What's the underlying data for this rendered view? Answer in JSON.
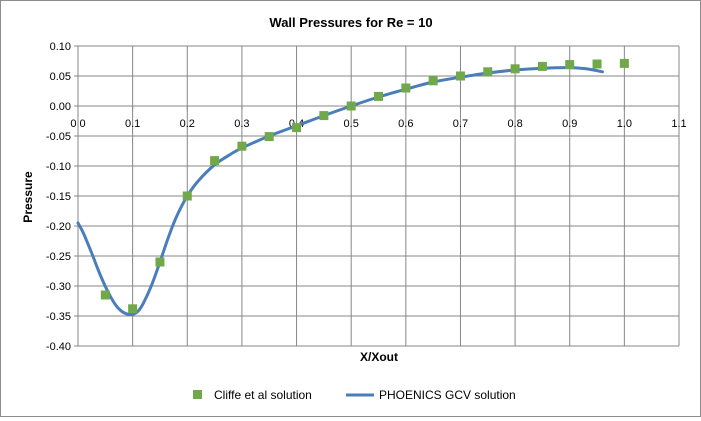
{
  "chart_data": {
    "type": "scatter+line",
    "title": "Wall Pressures for Re = 10",
    "xlabel": "X/Xout",
    "ylabel": "Pressure",
    "xlim": [
      0.0,
      1.1
    ],
    "ylim": [
      -0.4,
      0.1
    ],
    "x_ticks": [
      "0.0",
      "0.1",
      "0.2",
      "0.3",
      "0.4",
      "0.5",
      "0.6",
      "0.7",
      "0.8",
      "0.9",
      "1.0",
      "1.1"
    ],
    "y_ticks": [
      "0.10",
      "0.05",
      "0.00",
      "-0.05",
      "-0.10",
      "-0.15",
      "-0.20",
      "-0.25",
      "-0.30",
      "-0.35",
      "-0.40"
    ],
    "grid": true,
    "legend_position": "bottom",
    "series": [
      {
        "name": "Cliffe et al solution",
        "kind": "markers",
        "color": "#70a84a",
        "x": [
          0.05,
          0.1,
          0.15,
          0.2,
          0.25,
          0.3,
          0.35,
          0.4,
          0.45,
          0.5,
          0.55,
          0.6,
          0.65,
          0.7,
          0.75,
          0.8,
          0.85,
          0.9,
          0.95,
          1.0
        ],
        "y": [
          -0.315,
          -0.338,
          -0.26,
          -0.15,
          -0.091,
          -0.067,
          -0.051,
          -0.036,
          -0.016,
          0.0,
          0.016,
          0.03,
          0.042,
          0.05,
          0.057,
          0.062,
          0.066,
          0.069,
          0.07,
          0.071
        ]
      },
      {
        "name": "PHOENICS GCV solution",
        "kind": "line",
        "color": "#4a7ebb",
        "x": [
          0.0,
          0.01,
          0.025,
          0.04,
          0.055,
          0.07,
          0.085,
          0.1,
          0.11,
          0.12,
          0.135,
          0.15,
          0.165,
          0.18,
          0.2,
          0.22,
          0.25,
          0.28,
          0.3,
          0.35,
          0.4,
          0.45,
          0.5,
          0.55,
          0.6,
          0.65,
          0.7,
          0.75,
          0.8,
          0.85,
          0.9,
          0.93,
          0.96
        ],
        "y": [
          -0.195,
          -0.212,
          -0.245,
          -0.28,
          -0.31,
          -0.333,
          -0.345,
          -0.347,
          -0.342,
          -0.328,
          -0.298,
          -0.26,
          -0.22,
          -0.185,
          -0.15,
          -0.125,
          -0.098,
          -0.08,
          -0.07,
          -0.05,
          -0.033,
          -0.016,
          0.0,
          0.015,
          0.028,
          0.04,
          0.048,
          0.055,
          0.06,
          0.063,
          0.064,
          0.062,
          0.057
        ]
      }
    ]
  }
}
